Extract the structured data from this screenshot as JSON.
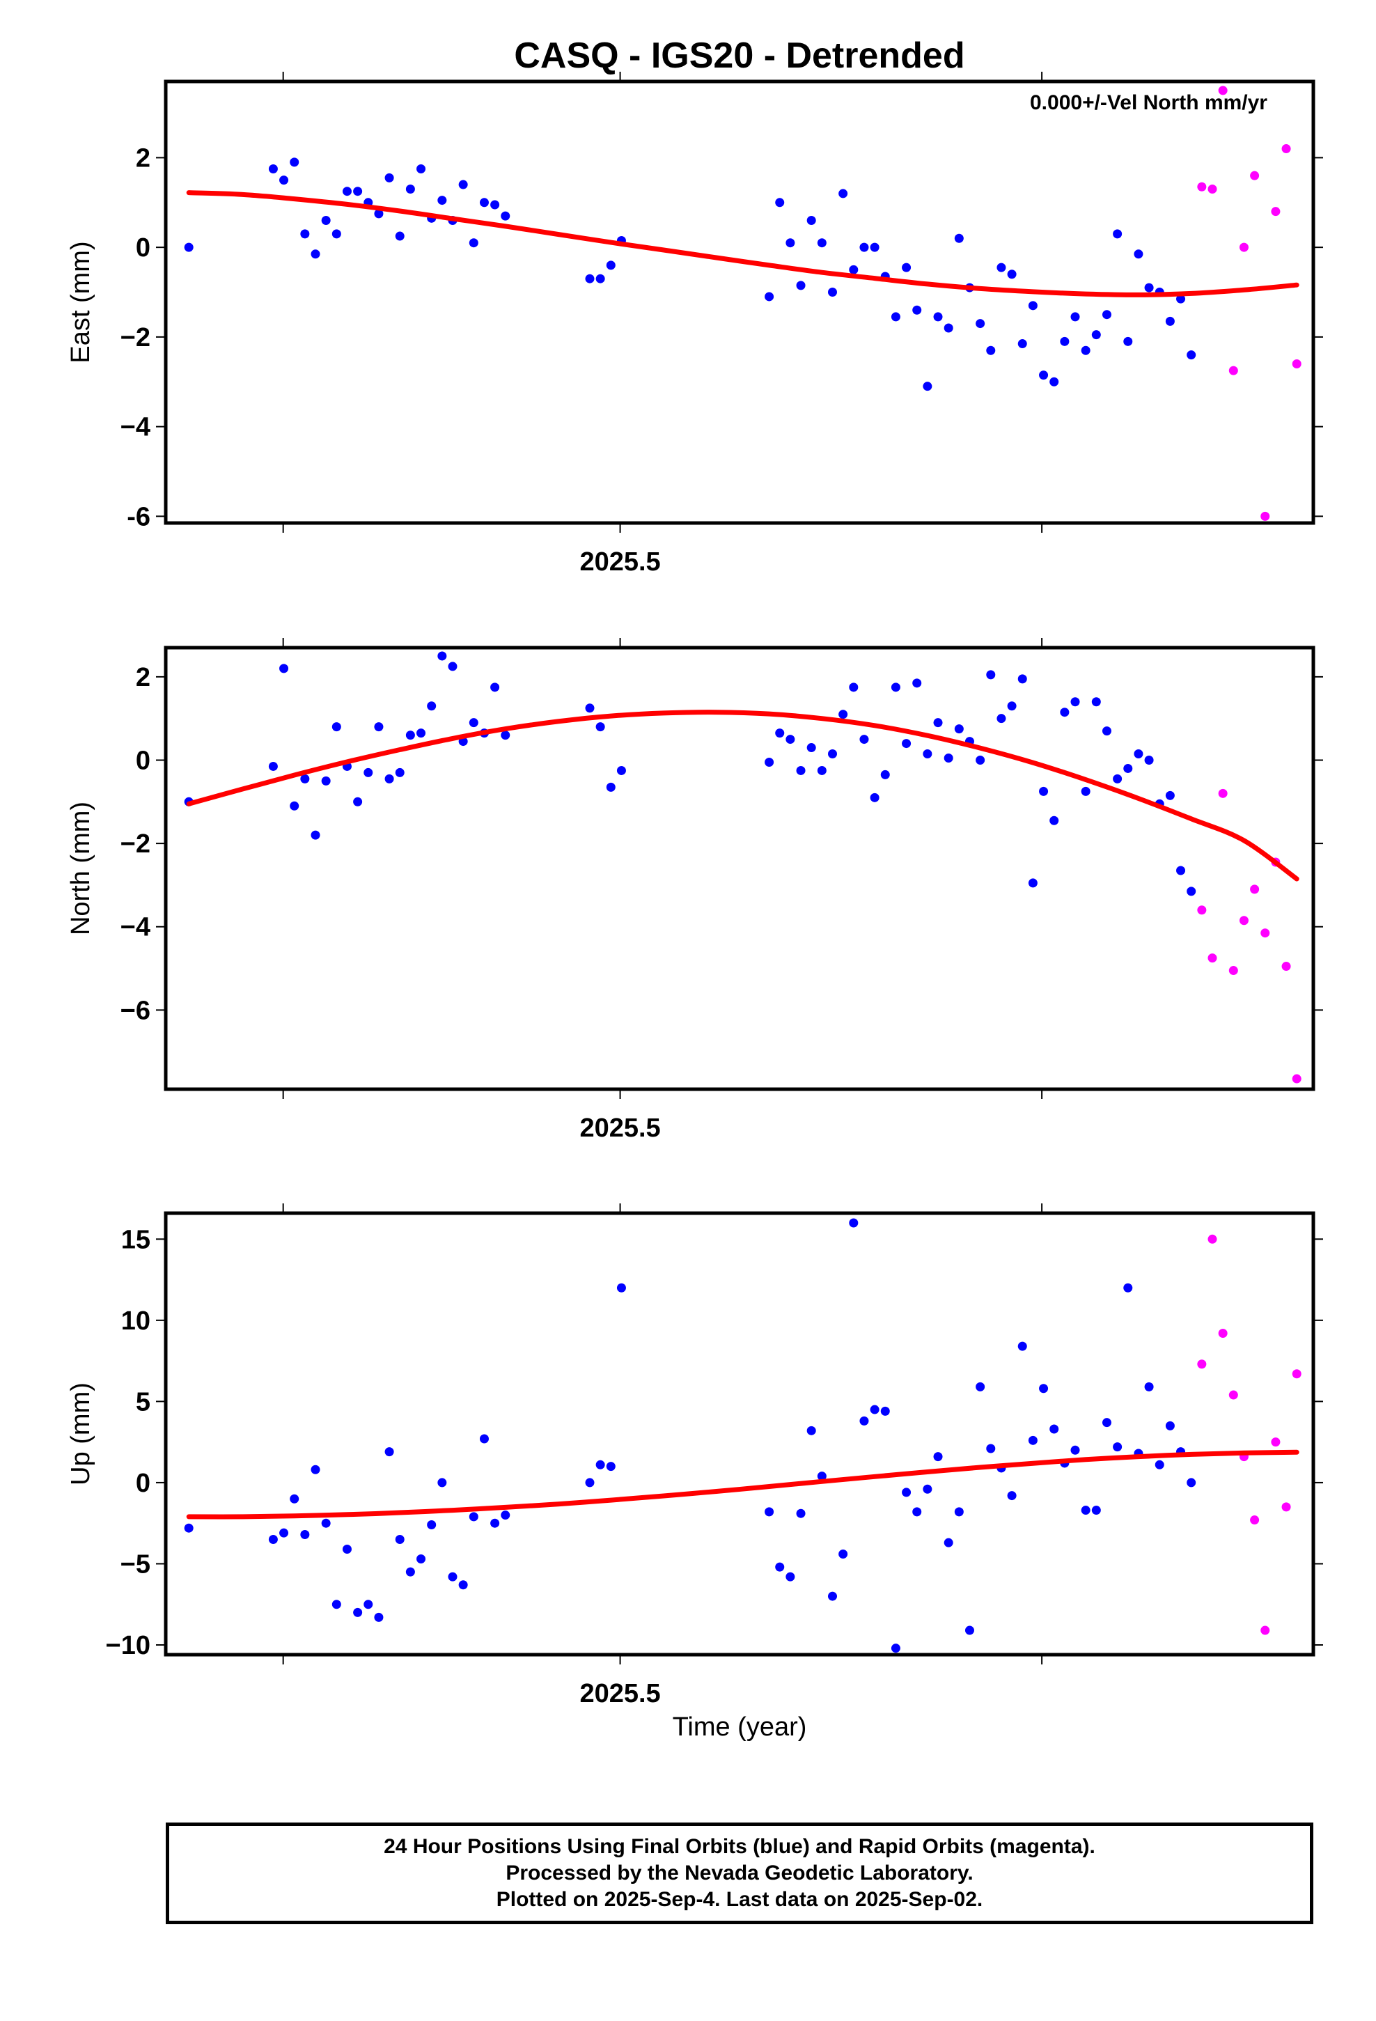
{
  "chart_data": {
    "title": "CASQ - IGS20 - Detrended",
    "type": "scatter",
    "xlabel": "Time (year)",
    "xlim": [
      2025.382,
      2025.68
    ],
    "x_ticks": [
      2025.5
    ],
    "x_tick_labels": [
      "2025.5"
    ],
    "colors": {
      "final": "#0000ff",
      "rapid": "#ff00ff",
      "fit": "#ff0000"
    },
    "footer": [
      "24 Hour Positions Using Final Orbits (blue) and Rapid Orbits (magenta).",
      "Processed by the Nevada Geodetic Laboratory.",
      "Plotted on 2025-Sep-4. Last data on 2025-Sep-02."
    ],
    "panels": [
      {
        "ylabel": "East (mm)",
        "annotation": "0.000+/-Vel North mm/yr",
        "ylim": [
          -6.15,
          3.7
        ],
        "y_ticks": [
          2,
          0,
          -2,
          -4,
          -6
        ],
        "y_tick_labels": [
          "2",
          "0",
          "−2",
          "−4",
          "-6"
        ],
        "final": [
          [
            0,
            0.0
          ],
          [
            8,
            1.75
          ],
          [
            9,
            1.5
          ],
          [
            10,
            1.9
          ],
          [
            11,
            0.3
          ],
          [
            12,
            -0.15
          ],
          [
            13,
            0.6
          ],
          [
            14,
            0.3
          ],
          [
            15,
            1.25
          ],
          [
            16,
            1.25
          ],
          [
            17,
            1.0
          ],
          [
            18,
            0.75
          ],
          [
            19,
            1.55
          ],
          [
            20,
            0.25
          ],
          [
            21,
            1.3
          ],
          [
            22,
            1.75
          ],
          [
            23,
            0.65
          ],
          [
            24,
            1.05
          ],
          [
            25,
            0.6
          ],
          [
            26,
            1.4
          ],
          [
            27,
            0.1
          ],
          [
            28,
            1.0
          ],
          [
            29,
            0.95
          ],
          [
            30,
            0.7
          ],
          [
            38,
            -0.7
          ],
          [
            39,
            -0.7
          ],
          [
            40,
            -0.4
          ],
          [
            41,
            0.15
          ],
          [
            55,
            -1.1
          ],
          [
            56,
            1.0
          ],
          [
            57,
            0.1
          ],
          [
            58,
            -0.85
          ],
          [
            59,
            0.6
          ],
          [
            60,
            0.1
          ],
          [
            61,
            -1.0
          ],
          [
            62,
            1.2
          ],
          [
            63,
            -0.5
          ],
          [
            64,
            0.0
          ],
          [
            65,
            0.0
          ],
          [
            66,
            -0.65
          ],
          [
            67,
            -1.55
          ],
          [
            68,
            -0.45
          ],
          [
            69,
            -1.4
          ],
          [
            70,
            -3.1
          ],
          [
            71,
            -1.55
          ],
          [
            72,
            -1.8
          ],
          [
            73,
            0.2
          ],
          [
            74,
            -0.9
          ],
          [
            75,
            -1.7
          ],
          [
            76,
            -2.3
          ],
          [
            77,
            -0.45
          ],
          [
            78,
            -0.6
          ],
          [
            79,
            -2.15
          ],
          [
            80,
            -1.3
          ],
          [
            81,
            -2.85
          ],
          [
            82,
            -3.0
          ],
          [
            83,
            -2.1
          ],
          [
            84,
            -1.55
          ],
          [
            85,
            -2.3
          ],
          [
            86,
            -1.95
          ],
          [
            87,
            -1.5
          ],
          [
            88,
            0.3
          ],
          [
            89,
            -2.1
          ],
          [
            90,
            -0.15
          ],
          [
            91,
            -0.9
          ],
          [
            92,
            -1.0
          ],
          [
            93,
            -1.65
          ],
          [
            94,
            -1.15
          ],
          [
            95,
            -2.4
          ]
        ],
        "rapid": [
          [
            96,
            1.35
          ],
          [
            97,
            1.3
          ],
          [
            98,
            3.5
          ],
          [
            99,
            -2.75
          ],
          [
            100,
            0.0
          ],
          [
            101,
            1.6
          ],
          [
            102,
            -6.0
          ],
          [
            103,
            0.8
          ],
          [
            104,
            2.2
          ],
          [
            105,
            -2.6
          ]
        ],
        "fit": [
          [
            0,
            1.22
          ],
          [
            5,
            1.18
          ],
          [
            10,
            1.08
          ],
          [
            15,
            0.96
          ],
          [
            20,
            0.81
          ],
          [
            25,
            0.64
          ],
          [
            30,
            0.47
          ],
          [
            35,
            0.29
          ],
          [
            40,
            0.11
          ],
          [
            45,
            -0.06
          ],
          [
            50,
            -0.23
          ],
          [
            55,
            -0.4
          ],
          [
            60,
            -0.56
          ],
          [
            65,
            -0.69
          ],
          [
            70,
            -0.82
          ],
          [
            75,
            -0.92
          ],
          [
            80,
            -0.99
          ],
          [
            85,
            -1.04
          ],
          [
            90,
            -1.06
          ],
          [
            95,
            -1.03
          ],
          [
            100,
            -0.95
          ],
          [
            105,
            -0.84
          ]
        ]
      },
      {
        "ylabel": "North (mm)",
        "annotation": "",
        "ylim": [
          -7.9,
          2.7
        ],
        "y_ticks": [
          2,
          0,
          -2,
          -4,
          -6
        ],
        "y_tick_labels": [
          "2",
          "0",
          "−2",
          "−4",
          "−6"
        ],
        "final": [
          [
            0,
            -1.0
          ],
          [
            8,
            -0.15
          ],
          [
            9,
            2.2
          ],
          [
            10,
            -1.1
          ],
          [
            11,
            -0.45
          ],
          [
            12,
            -1.8
          ],
          [
            13,
            -0.5
          ],
          [
            14,
            0.8
          ],
          [
            15,
            -0.15
          ],
          [
            16,
            -1.0
          ],
          [
            17,
            -0.3
          ],
          [
            18,
            0.8
          ],
          [
            19,
            -0.45
          ],
          [
            20,
            -0.3
          ],
          [
            21,
            0.6
          ],
          [
            22,
            0.65
          ],
          [
            23,
            1.3
          ],
          [
            24,
            2.5
          ],
          [
            25,
            2.25
          ],
          [
            26,
            0.45
          ],
          [
            27,
            0.9
          ],
          [
            28,
            0.65
          ],
          [
            29,
            1.75
          ],
          [
            30,
            0.6
          ],
          [
            38,
            1.25
          ],
          [
            39,
            0.8
          ],
          [
            40,
            -0.65
          ],
          [
            41,
            -0.25
          ],
          [
            55,
            -0.05
          ],
          [
            56,
            0.65
          ],
          [
            57,
            0.5
          ],
          [
            58,
            -0.25
          ],
          [
            59,
            0.3
          ],
          [
            60,
            -0.25
          ],
          [
            61,
            0.15
          ],
          [
            62,
            1.1
          ],
          [
            63,
            1.75
          ],
          [
            64,
            0.5
          ],
          [
            65,
            -0.9
          ],
          [
            66,
            -0.35
          ],
          [
            67,
            1.75
          ],
          [
            68,
            0.4
          ],
          [
            69,
            1.85
          ],
          [
            70,
            0.15
          ],
          [
            71,
            0.9
          ],
          [
            72,
            0.05
          ],
          [
            73,
            0.75
          ],
          [
            74,
            0.45
          ],
          [
            75,
            0.0
          ],
          [
            76,
            2.05
          ],
          [
            77,
            1.0
          ],
          [
            78,
            1.3
          ],
          [
            79,
            1.95
          ],
          [
            80,
            -2.95
          ],
          [
            81,
            -0.75
          ],
          [
            82,
            -1.45
          ],
          [
            83,
            1.15
          ],
          [
            84,
            1.4
          ],
          [
            85,
            -0.75
          ],
          [
            86,
            1.4
          ],
          [
            87,
            0.7
          ],
          [
            88,
            -0.45
          ],
          [
            89,
            -0.2
          ],
          [
            90,
            0.15
          ],
          [
            91,
            0.0
          ],
          [
            92,
            -1.05
          ],
          [
            93,
            -0.85
          ],
          [
            94,
            -2.65
          ],
          [
            95,
            -3.15
          ]
        ],
        "rapid": [
          [
            96,
            -3.6
          ],
          [
            97,
            -4.75
          ],
          [
            98,
            -0.8
          ],
          [
            99,
            -5.05
          ],
          [
            100,
            -3.85
          ],
          [
            101,
            -3.1
          ],
          [
            102,
            -4.15
          ],
          [
            103,
            -2.45
          ],
          [
            104,
            -4.95
          ],
          [
            105,
            -7.65
          ]
        ],
        "fit": [
          [
            0,
            -1.05
          ],
          [
            5,
            -0.7
          ],
          [
            10,
            -0.36
          ],
          [
            15,
            -0.04
          ],
          [
            20,
            0.25
          ],
          [
            25,
            0.52
          ],
          [
            30,
            0.75
          ],
          [
            35,
            0.93
          ],
          [
            40,
            1.06
          ],
          [
            45,
            1.13
          ],
          [
            50,
            1.15
          ],
          [
            55,
            1.11
          ],
          [
            60,
            1.0
          ],
          [
            65,
            0.83
          ],
          [
            70,
            0.59
          ],
          [
            75,
            0.29
          ],
          [
            80,
            -0.06
          ],
          [
            85,
            -0.47
          ],
          [
            90,
            -0.92
          ],
          [
            95,
            -1.41
          ],
          [
            100,
            -1.93
          ],
          [
            105,
            -2.85
          ]
        ]
      },
      {
        "ylabel": "Up (mm)",
        "annotation": "",
        "ylim": [
          -10.6,
          16.6
        ],
        "y_ticks": [
          15,
          10,
          5,
          0,
          -5,
          -10
        ],
        "y_tick_labels": [
          "15",
          "10",
          "5",
          "0",
          "−5",
          "−10"
        ],
        "final": [
          [
            0,
            -2.8
          ],
          [
            8,
            -3.5
          ],
          [
            9,
            -3.1
          ],
          [
            10,
            -1.0
          ],
          [
            11,
            -3.2
          ],
          [
            12,
            0.8
          ],
          [
            13,
            -2.5
          ],
          [
            14,
            -7.5
          ],
          [
            15,
            -4.1
          ],
          [
            16,
            -8.0
          ],
          [
            17,
            -7.5
          ],
          [
            18,
            -8.3
          ],
          [
            19,
            1.9
          ],
          [
            20,
            -3.5
          ],
          [
            21,
            -5.5
          ],
          [
            22,
            -4.7
          ],
          [
            23,
            -2.6
          ],
          [
            24,
            0.0
          ],
          [
            25,
            -5.8
          ],
          [
            26,
            -6.3
          ],
          [
            27,
            -2.1
          ],
          [
            28,
            2.7
          ],
          [
            29,
            -2.5
          ],
          [
            30,
            -2.0
          ],
          [
            38,
            0.0
          ],
          [
            39,
            1.1
          ],
          [
            40,
            1.0
          ],
          [
            41,
            12.0
          ],
          [
            55,
            -1.8
          ],
          [
            56,
            -5.2
          ],
          [
            57,
            -5.8
          ],
          [
            58,
            -1.9
          ],
          [
            59,
            3.2
          ],
          [
            60,
            0.4
          ],
          [
            61,
            -7.0
          ],
          [
            62,
            -4.4
          ],
          [
            63,
            16.0
          ],
          [
            64,
            3.8
          ],
          [
            65,
            4.5
          ],
          [
            66,
            4.4
          ],
          [
            67,
            -10.2
          ],
          [
            68,
            -0.6
          ],
          [
            69,
            -1.8
          ],
          [
            70,
            -0.4
          ],
          [
            71,
            1.6
          ],
          [
            72,
            -3.7
          ],
          [
            73,
            -1.8
          ],
          [
            74,
            -9.1
          ],
          [
            75,
            5.9
          ],
          [
            76,
            2.1
          ],
          [
            77,
            0.9
          ],
          [
            78,
            -0.8
          ],
          [
            79,
            8.4
          ],
          [
            80,
            2.6
          ],
          [
            81,
            5.8
          ],
          [
            82,
            3.3
          ],
          [
            83,
            1.2
          ],
          [
            84,
            2.0
          ],
          [
            85,
            -1.7
          ],
          [
            86,
            -1.7
          ],
          [
            87,
            3.7
          ],
          [
            88,
            2.2
          ],
          [
            89,
            12.0
          ],
          [
            90,
            1.8
          ],
          [
            91,
            5.9
          ],
          [
            92,
            1.1
          ],
          [
            93,
            3.5
          ],
          [
            94,
            1.9
          ],
          [
            95,
            0.0
          ]
        ],
        "rapid": [
          [
            96,
            7.3
          ],
          [
            97,
            15.0
          ],
          [
            98,
            9.2
          ],
          [
            99,
            5.4
          ],
          [
            100,
            1.6
          ],
          [
            101,
            -2.3
          ],
          [
            102,
            -9.1
          ],
          [
            103,
            2.5
          ],
          [
            104,
            -1.5
          ],
          [
            105,
            6.7
          ]
        ],
        "fit": [
          [
            0,
            -2.1
          ],
          [
            5,
            -2.1
          ],
          [
            10,
            -2.05
          ],
          [
            15,
            -1.97
          ],
          [
            20,
            -1.85
          ],
          [
            25,
            -1.7
          ],
          [
            30,
            -1.52
          ],
          [
            35,
            -1.32
          ],
          [
            40,
            -1.08
          ],
          [
            45,
            -0.82
          ],
          [
            50,
            -0.54
          ],
          [
            55,
            -0.24
          ],
          [
            60,
            0.07
          ],
          [
            65,
            0.37
          ],
          [
            70,
            0.66
          ],
          [
            75,
            0.94
          ],
          [
            80,
            1.19
          ],
          [
            85,
            1.42
          ],
          [
            90,
            1.6
          ],
          [
            95,
            1.74
          ],
          [
            100,
            1.83
          ],
          [
            105,
            1.87
          ]
        ]
      }
    ]
  }
}
